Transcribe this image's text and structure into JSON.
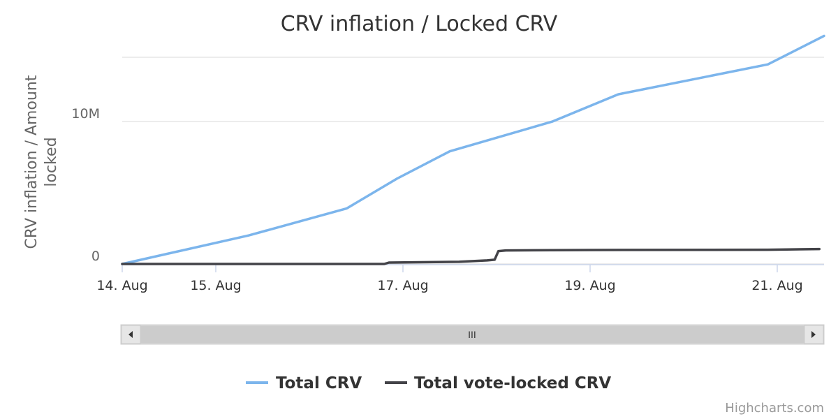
{
  "chart_data": {
    "type": "line",
    "title": "CRV inflation / Locked CRV",
    "ylabel": "CRV inflation / Amount locked",
    "ylabel_lines": [
      "CRV inflation / Amount",
      "locked"
    ],
    "xlabel": "",
    "ylim": [
      0,
      14500000
    ],
    "yticks": [
      {
        "value": 0,
        "label": "0"
      },
      {
        "value": 10000000,
        "label": "10M"
      }
    ],
    "xticks": [
      {
        "x": 0,
        "label": "14. Aug"
      },
      {
        "x": 1,
        "label": "15. Aug"
      },
      {
        "x": 3,
        "label": "17. Aug"
      },
      {
        "x": 5,
        "label": "19. Aug"
      },
      {
        "x": 7,
        "label": "21. Aug"
      }
    ],
    "xlim": [
      0,
      7.5
    ],
    "grid": true,
    "legend_position": "bottom-center",
    "series": [
      {
        "name": "Total CRV",
        "color": "#7cb5ec",
        "points": [
          [
            0,
            0
          ],
          [
            1.35,
            2000000
          ],
          [
            2.4,
            3900000
          ],
          [
            2.94,
            6000000
          ],
          [
            3.5,
            7900000
          ],
          [
            4.6,
            10000000
          ],
          [
            5.3,
            11900000
          ],
          [
            6.9,
            14000000
          ],
          [
            7.5,
            16000000
          ]
        ]
      },
      {
        "name": "Total vote-locked CRV",
        "color": "#434348",
        "points": [
          [
            0,
            0
          ],
          [
            2.8,
            0
          ],
          [
            2.85,
            100000
          ],
          [
            3.6,
            150000
          ],
          [
            3.9,
            250000
          ],
          [
            3.98,
            300000
          ],
          [
            4.02,
            900000
          ],
          [
            4.1,
            950000
          ],
          [
            5.0,
            980000
          ],
          [
            6.9,
            1000000
          ],
          [
            7.45,
            1050000
          ]
        ]
      }
    ]
  },
  "navigator": {
    "left_arrow_icon": "arrow-left-icon",
    "right_arrow_icon": "arrow-right-icon",
    "grip_label": "III"
  },
  "legend": {
    "items": [
      {
        "name": "Total CRV",
        "color": "#7cb5ec"
      },
      {
        "name": "Total vote-locked CRV",
        "color": "#434348"
      }
    ]
  },
  "credits": "Highcharts.com"
}
